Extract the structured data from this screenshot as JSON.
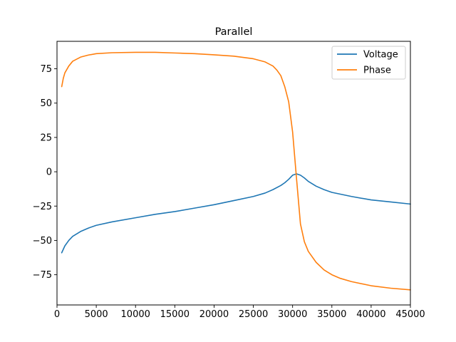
{
  "chart_data": {
    "type": "line",
    "title": "Parallel",
    "xlabel": "",
    "ylabel": "",
    "xlim": [
      0,
      45000
    ],
    "ylim": [
      -97,
      95
    ],
    "x_ticks": [
      0,
      5000,
      10000,
      15000,
      20000,
      25000,
      30000,
      35000,
      40000,
      45000
    ],
    "x_tick_labels": [
      "0",
      "5000",
      "10000",
      "15000",
      "20000",
      "25000",
      "30000",
      "35000",
      "40000",
      "45000"
    ],
    "y_ticks": [
      75,
      50,
      25,
      0,
      -25,
      -50,
      -75
    ],
    "y_tick_labels": [
      "75",
      "50",
      "25",
      "0",
      "−25",
      "−50",
      "−75"
    ],
    "grid": false,
    "legend_position": "upper right",
    "series": [
      {
        "name": "Voltage",
        "color": "#1f77b4",
        "x": [
          600,
          1000,
          1500,
          2000,
          3000,
          4000,
          5000,
          7000,
          10000,
          12500,
          15000,
          17500,
          20000,
          22500,
          25000,
          26500,
          27500,
          28500,
          29000,
          29500,
          30000,
          30500,
          31000,
          31500,
          32000,
          33000,
          34000,
          35000,
          37500,
          40000,
          42500,
          45000
        ],
        "y": [
          -59,
          -54,
          -50,
          -47,
          -43.5,
          -41,
          -39,
          -36.5,
          -33.5,
          -31,
          -29,
          -26.5,
          -24,
          -21,
          -18,
          -15.5,
          -13,
          -10,
          -8,
          -5.5,
          -2.5,
          -1.5,
          -2.5,
          -4.5,
          -7,
          -10.5,
          -13,
          -15,
          -18,
          -20.5,
          -22,
          -23.5
        ]
      },
      {
        "name": "Phase",
        "color": "#ff7f0e",
        "x": [
          600,
          800,
          1000,
          1500,
          2000,
          3000,
          4000,
          5000,
          7000,
          10000,
          12500,
          15000,
          17500,
          20000,
          22500,
          25000,
          26500,
          27500,
          28000,
          28500,
          29000,
          29500,
          30000,
          30500,
          31000,
          31500,
          32000,
          33000,
          34000,
          35000,
          36000,
          37500,
          40000,
          42500,
          45000
        ],
        "y": [
          62,
          68,
          72,
          77,
          80.5,
          83.5,
          85,
          86,
          86.7,
          87,
          87,
          86.5,
          86,
          85.2,
          84.2,
          82.3,
          80,
          77,
          74,
          70,
          62,
          51,
          29,
          -5,
          -38,
          -51,
          -58,
          -66,
          -71.5,
          -75,
          -77.5,
          -80,
          -83,
          -84.8,
          -86
        ]
      }
    ]
  }
}
